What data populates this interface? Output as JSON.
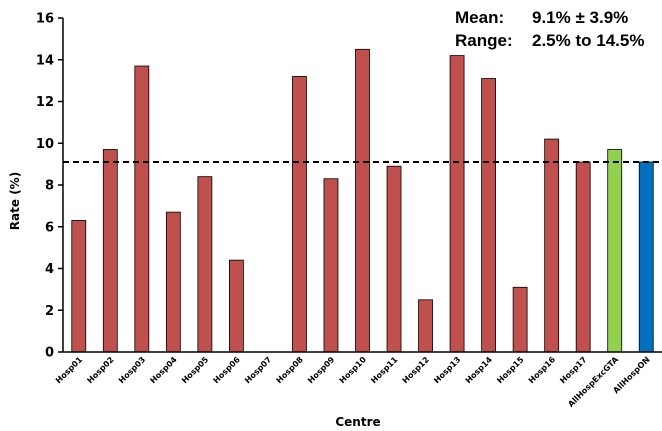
{
  "chart_data": {
    "type": "bar",
    "categories": [
      "Hosp01",
      "Hosp02",
      "Hosp03",
      "Hosp04",
      "Hosp05",
      "Hosp06",
      "Hosp07",
      "Hosp08",
      "Hosp09",
      "Hosp10",
      "Hosp11",
      "Hosp12",
      "Hosp13",
      "Hosp14",
      "Hosp15",
      "Hosp16",
      "Hosp17",
      "AllHospExcGTA",
      "AllHospON"
    ],
    "values": [
      6.3,
      9.7,
      13.7,
      6.7,
      8.4,
      4.4,
      0,
      13.2,
      8.3,
      14.5,
      8.9,
      2.5,
      14.2,
      13.1,
      3.1,
      10.2,
      9.1,
      9.7,
      9.1
    ],
    "colors": [
      "#c0504d",
      "#c0504d",
      "#c0504d",
      "#c0504d",
      "#c0504d",
      "#c0504d",
      "#c0504d",
      "#c0504d",
      "#c0504d",
      "#c0504d",
      "#c0504d",
      "#c0504d",
      "#c0504d",
      "#c0504d",
      "#c0504d",
      "#c0504d",
      "#c0504d",
      "#92d050",
      "#0070c0"
    ],
    "xlabel": "Centre",
    "ylabel": "Rate (%)",
    "ylim": [
      0,
      16
    ],
    "yticks": [
      0,
      2,
      4,
      6,
      8,
      10,
      12,
      14,
      16
    ],
    "reference_line": {
      "value": 9.1,
      "style": "dashed"
    },
    "annotations": {
      "mean_label": "Mean:",
      "mean_value": "9.1% ± 3.9%",
      "range_label": "Range:",
      "range_value": "2.5% to 14.5%"
    },
    "grid": false,
    "legend": "none"
  }
}
